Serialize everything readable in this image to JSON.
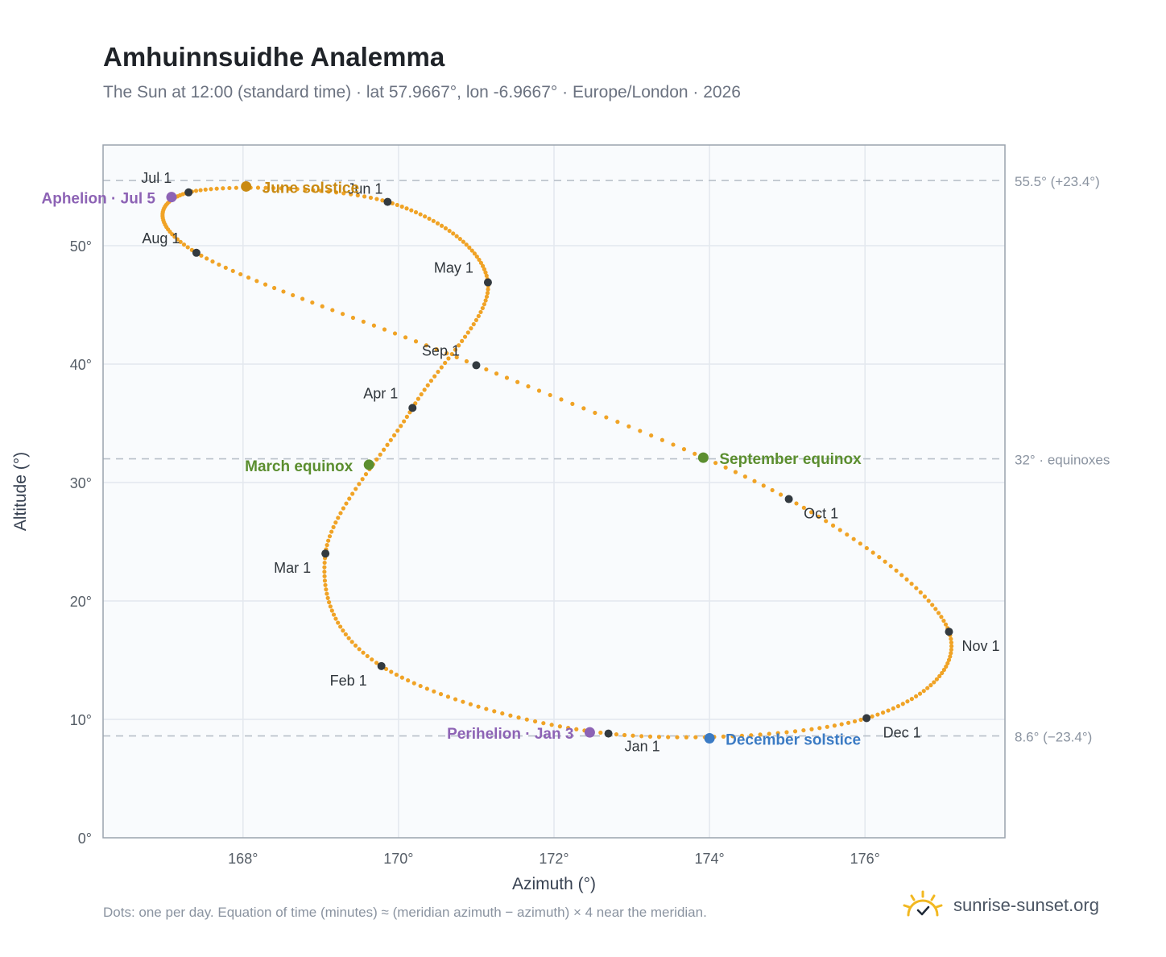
{
  "header": {
    "title": "Amhuinnsuidhe Analemma",
    "subtitle": "The Sun at 12:00 (standard time) · lat 57.9667°, lon -6.9667° · Europe/London · 2026"
  },
  "footer": {
    "note": "Dots: one per day. Equation of time (minutes) ≈ (meridian azimuth − azimuth) × 4 near the meridian.",
    "brand": "sunrise-sunset.org"
  },
  "colors": {
    "path": "#f0a326",
    "month_marker": "#333a40",
    "aphelion": "#8d63b5",
    "perihelion": "#8d63b5",
    "equinox": "#5b8e2f",
    "june_solstice": "#c98a12",
    "december_solstice": "#3b7bc4",
    "plot_bg": "#f9fbfd",
    "grid": "#e3e8ee",
    "axis_frame": "#9aa3ad",
    "reference_line": "#b9c1ca"
  },
  "chart_data": {
    "type": "scatter",
    "xlabel": "Azimuth (°)",
    "ylabel": "Altitude (°)",
    "xlim": [
      166.2,
      177.8
    ],
    "ylim": [
      0,
      58.5
    ],
    "x_ticks": [
      168,
      170,
      172,
      174,
      176
    ],
    "x_tick_labels": [
      "168°",
      "170°",
      "172°",
      "174°",
      "176°"
    ],
    "y_ticks": [
      0,
      10,
      20,
      30,
      40,
      50
    ],
    "y_tick_labels": [
      "0°",
      "10°",
      "20°",
      "30°",
      "40°",
      "50°"
    ],
    "grid": true,
    "reference_lines": [
      {
        "y": 55.5,
        "label": "55.5° (+23.4°)"
      },
      {
        "y": 32.0,
        "label": "32° · equinoxes"
      },
      {
        "y": 8.6,
        "label": "8.6° (−23.4°)"
      }
    ],
    "analemma_waypoints": [
      {
        "day": 1,
        "azimuth": 172.7,
        "altitude": 8.8
      },
      {
        "day": 32,
        "azimuth": 169.78,
        "altitude": 14.5
      },
      {
        "day": 60,
        "azimuth": 169.06,
        "altitude": 24.0
      },
      {
        "day": 91,
        "azimuth": 170.18,
        "altitude": 36.3
      },
      {
        "day": 121,
        "azimuth": 171.15,
        "altitude": 46.9
      },
      {
        "day": 152,
        "azimuth": 169.86,
        "altitude": 53.7
      },
      {
        "day": 182,
        "azimuth": 167.3,
        "altitude": 54.5
      },
      {
        "day": 213,
        "azimuth": 167.4,
        "altitude": 49.4
      },
      {
        "day": 244,
        "azimuth": 171.0,
        "altitude": 39.9
      },
      {
        "day": 274,
        "azimuth": 175.02,
        "altitude": 28.6
      },
      {
        "day": 305,
        "azimuth": 177.08,
        "altitude": 17.4
      },
      {
        "day": 335,
        "azimuth": 176.02,
        "altitude": 10.1
      },
      {
        "day": 366,
        "azimuth": 172.7,
        "altitude": 8.8
      }
    ],
    "month_markers": [
      {
        "label": "Jan 1",
        "azimuth": 172.7,
        "altitude": 8.8
      },
      {
        "label": "Feb 1",
        "azimuth": 169.78,
        "altitude": 14.5
      },
      {
        "label": "Mar 1",
        "azimuth": 169.06,
        "altitude": 24.0
      },
      {
        "label": "Apr 1",
        "azimuth": 170.18,
        "altitude": 36.3
      },
      {
        "label": "May 1",
        "azimuth": 171.15,
        "altitude": 46.9
      },
      {
        "label": "Jun 1",
        "azimuth": 169.86,
        "altitude": 53.7
      },
      {
        "label": "Jul 1",
        "azimuth": 167.3,
        "altitude": 54.5
      },
      {
        "label": "Aug 1",
        "azimuth": 167.4,
        "altitude": 49.4
      },
      {
        "label": "Sep 1",
        "azimuth": 171.0,
        "altitude": 39.9
      },
      {
        "label": "Oct 1",
        "azimuth": 175.02,
        "altitude": 28.6
      },
      {
        "label": "Nov 1",
        "azimuth": 177.08,
        "altitude": 17.4
      },
      {
        "label": "Dec 1",
        "azimuth": 176.02,
        "altitude": 10.1
      }
    ],
    "events": [
      {
        "label": "Perihelion · Jan 3",
        "azimuth": 172.46,
        "altitude": 8.9,
        "kind": "perihelion"
      },
      {
        "label": "March equinox",
        "azimuth": 169.62,
        "altitude": 31.5,
        "kind": "equinox"
      },
      {
        "label": "June solstice",
        "azimuth": 168.04,
        "altitude": 55.0,
        "kind": "june_solstice"
      },
      {
        "label": "Aphelion · Jul 5",
        "azimuth": 167.08,
        "altitude": 54.1,
        "kind": "aphelion"
      },
      {
        "label": "September equinox",
        "azimuth": 173.92,
        "altitude": 32.1,
        "kind": "equinox"
      },
      {
        "label": "December solstice",
        "azimuth": 174.0,
        "altitude": 8.4,
        "kind": "december_solstice"
      }
    ]
  }
}
